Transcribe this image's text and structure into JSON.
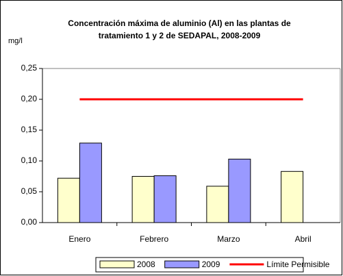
{
  "chart_data": {
    "type": "bar",
    "title": [
      "Concentración máxima de aluminio (Al) en las plantas de",
      "tratamiento 1  y  2 de SEDAPAL, 2008-2009"
    ],
    "y_label": "mg/l",
    "categories": [
      "Enero",
      "Febrero",
      "Marzo",
      "Abril"
    ],
    "series": [
      {
        "name": "2008",
        "type": "bar",
        "color": "#ffffcc",
        "values": [
          0.072,
          0.075,
          0.059,
          0.083
        ]
      },
      {
        "name": "2009",
        "type": "bar",
        "color": "#9999ff",
        "values": [
          0.129,
          0.076,
          0.103,
          null
        ]
      },
      {
        "name": "Límite Permisible",
        "type": "line",
        "color": "#ff0000",
        "values": [
          0.2,
          0.2,
          0.2,
          0.2
        ]
      }
    ],
    "ylim": [
      0,
      0.25
    ],
    "yticks": [
      {
        "value": 0,
        "label": "0,00"
      },
      {
        "value": 0.05,
        "label": "0,05"
      },
      {
        "value": 0.1,
        "label": "0,10"
      },
      {
        "value": 0.15,
        "label": "0,15"
      },
      {
        "value": 0.2,
        "label": "0,20"
      },
      {
        "value": 0.25,
        "label": "0,25"
      }
    ],
    "grid": false,
    "legend": "bottom"
  }
}
